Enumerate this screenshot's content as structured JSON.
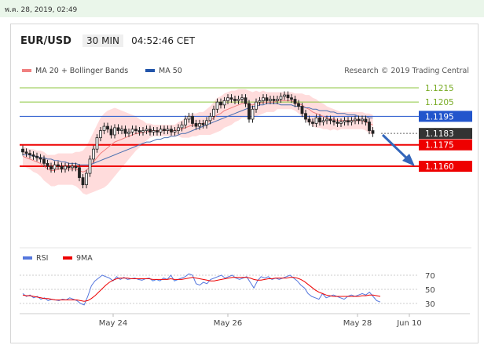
{
  "datetime": "พ.ค. 28, 2019, 02:49",
  "symbol": "EUR/USD",
  "timeframe": "30 MIN",
  "clock": "04:52:46 CET",
  "legend": {
    "ma20": "MA 20 + Bollinger Bands",
    "ma50": "MA 50",
    "credit": "Research © 2019 Trading Central",
    "rsi": "RSI",
    "ma9": "9MA"
  },
  "colors": {
    "green": "#8cc63f",
    "blue": "#2255cc",
    "red": "#ee0000",
    "dark": "#333333",
    "band": "#ffd0d0",
    "ma20": "#f08080",
    "ma50": "#4a6fb0",
    "rsi": "#5577dd",
    "arrow": "#3366bb"
  },
  "chart_data": [
    {
      "type": "candlestick",
      "title": "EUR/USD",
      "ylim": [
        1.1136,
        1.1228
      ],
      "levels": [
        {
          "value": 1.1215,
          "label": "1.1215",
          "kind": "resistance"
        },
        {
          "value": 1.1205,
          "label": "1.1205",
          "kind": "resistance"
        },
        {
          "value": 1.1195,
          "label": "1.1195",
          "kind": "pivot"
        },
        {
          "value": 1.1183,
          "label": "1.1183",
          "kind": "last"
        },
        {
          "value": 1.1175,
          "label": "1.1175",
          "kind": "support"
        },
        {
          "value": 1.116,
          "label": "1.1160",
          "kind": "support"
        }
      ],
      "x_ticks": [
        "May 24",
        "May 26",
        "May 28",
        "Jun 10"
      ],
      "close": [
        1.117,
        1.1169,
        1.1168,
        1.1167,
        1.1166,
        1.1165,
        1.1162,
        1.116,
        1.1158,
        1.1161,
        1.116,
        1.1158,
        1.116,
        1.1159,
        1.116,
        1.1159,
        1.1152,
        1.1147,
        1.1155,
        1.1165,
        1.1172,
        1.118,
        1.1185,
        1.1188,
        1.1186,
        1.1182,
        1.1187,
        1.1185,
        1.1186,
        1.1183,
        1.1184,
        1.1186,
        1.1185,
        1.1184,
        1.1185,
        1.1186,
        1.1184,
        1.1185,
        1.1184,
        1.1186,
        1.1185,
        1.1186,
        1.1184,
        1.1185,
        1.1187,
        1.1189,
        1.1193,
        1.1195,
        1.119,
        1.1188,
        1.119,
        1.1189,
        1.1192,
        1.1195,
        1.12,
        1.1205,
        1.1203,
        1.1206,
        1.1208,
        1.1207,
        1.1206,
        1.1207,
        1.1208,
        1.1204,
        1.1193,
        1.12,
        1.1205,
        1.1206,
        1.1208,
        1.1206,
        1.1207,
        1.1206,
        1.1207,
        1.1209,
        1.121,
        1.1208,
        1.1207,
        1.1204,
        1.1202,
        1.1197,
        1.1193,
        1.1191,
        1.119,
        1.1194,
        1.1191,
        1.1192,
        1.1193,
        1.1192,
        1.1191,
        1.119,
        1.1191,
        1.1192,
        1.1191,
        1.1192,
        1.1193,
        1.1192,
        1.1193,
        1.1191,
        1.1185,
        1.1183
      ],
      "ma20": [
        1.1167,
        1.1166,
        1.1165,
        1.1164,
        1.1163,
        1.1162,
        1.116,
        1.1158,
        1.1157,
        1.1157,
        1.1158,
        1.1158,
        1.1158,
        1.1158,
        1.1158,
        1.1158,
        1.1157,
        1.1156,
        1.1157,
        1.116,
        1.1163,
        1.1166,
        1.1169,
        1.1171,
        1.1173,
        1.1175,
        1.1177,
        1.1178,
        1.1179,
        1.118,
        1.1181,
        1.1182,
        1.1183,
        1.1183,
        1.1184,
        1.1184,
        1.1185,
        1.1185,
        1.1185,
        1.1185,
        1.1185,
        1.1185,
        1.1185,
        1.1185,
        1.1186,
        1.1186,
        1.1187,
        1.1188,
        1.1189,
        1.1189,
        1.119,
        1.119,
        1.1191,
        1.1192,
        1.1194,
        1.1196,
        1.1197,
        1.1199,
        1.12,
        1.1201,
        1.1202,
        1.1203,
        1.1204,
        1.1204,
        1.1203,
        1.1203,
        1.1204,
        1.1204,
        1.1205,
        1.1205,
        1.1205,
        1.1205,
        1.1206,
        1.1206,
        1.1206,
        1.1206,
        1.1206,
        1.1205,
        1.1204,
        1.1203,
        1.1201,
        1.12,
        1.1198,
        1.1197,
        1.1196,
        1.1195,
        1.1194,
        1.1193,
        1.1193,
        1.1192,
        1.1192,
        1.1192,
        1.1192,
        1.1192,
        1.1192,
        1.1192,
        1.1192,
        1.1191,
        1.119,
        1.1189
      ],
      "bb_width": [
        0.0007,
        0.0007,
        0.0007,
        0.0008,
        0.0008,
        0.0009,
        0.001,
        0.001,
        0.0011,
        0.0011,
        0.0011,
        0.0011,
        0.0011,
        0.0011,
        0.0011,
        0.0012,
        0.0013,
        0.0015,
        0.0017,
        0.0019,
        0.0021,
        0.0023,
        0.0025,
        0.0026,
        0.0026,
        0.0025,
        0.0024,
        0.0022,
        0.002,
        0.0018,
        0.0016,
        0.0014,
        0.0012,
        0.001,
        0.0008,
        0.0006,
        0.0005,
        0.0004,
        0.0004,
        0.0004,
        0.0004,
        0.0004,
        0.0004,
        0.0004,
        0.0005,
        0.0006,
        0.0007,
        0.0008,
        0.0008,
        0.0008,
        0.0008,
        0.0008,
        0.0009,
        0.001,
        0.0011,
        0.0012,
        0.0012,
        0.0012,
        0.0012,
        0.0012,
        0.0011,
        0.0011,
        0.001,
        0.001,
        0.001,
        0.0009,
        0.0009,
        0.0008,
        0.0008,
        0.0007,
        0.0007,
        0.0007,
        0.0006,
        0.0006,
        0.0006,
        0.0006,
        0.0006,
        0.0006,
        0.0007,
        0.0008,
        0.0009,
        0.001,
        0.001,
        0.001,
        0.0009,
        0.0009,
        0.0008,
        0.0008,
        0.0007,
        0.0007,
        0.0006,
        0.0006,
        0.0006,
        0.0006,
        0.0006,
        0.0006,
        0.0006,
        0.0006,
        0.0007,
        0.0007
      ],
      "ma50": [
        1.1168,
        1.1168,
        1.1168,
        1.1167,
        1.1167,
        1.1166,
        1.1166,
        1.1165,
        1.1165,
        1.1164,
        1.1164,
        1.1163,
        1.1163,
        1.1162,
        1.1162,
        1.1162,
        1.1161,
        1.1161,
        1.1161,
        1.1161,
        1.1162,
        1.1163,
        1.1164,
        1.1165,
        1.1166,
        1.1167,
        1.1168,
        1.1169,
        1.117,
        1.1171,
        1.1172,
        1.1173,
        1.1174,
        1.1175,
        1.1176,
        1.1177,
        1.1177,
        1.1178,
        1.1179,
        1.1179,
        1.118,
        1.118,
        1.1181,
        1.1181,
        1.1182,
        1.1183,
        1.1183,
        1.1184,
        1.1185,
        1.1186,
        1.1187,
        1.1188,
        1.1189,
        1.119,
        1.1191,
        1.1192,
        1.1193,
        1.1194,
        1.1195,
        1.1196,
        1.1197,
        1.1198,
        1.1199,
        1.12,
        1.1201,
        1.1202,
        1.1202,
        1.1203,
        1.1203,
        1.1204,
        1.1204,
        1.1204,
        1.1204,
        1.1203,
        1.1203,
        1.1203,
        1.1203,
        1.1202,
        1.1202,
        1.1202,
        1.1201,
        1.1201,
        1.12,
        1.12,
        1.1199,
        1.1199,
        1.1199,
        1.1198,
        1.1198,
        1.1197,
        1.1197,
        1.1197,
        1.1196,
        1.1196,
        1.1196,
        1.1195,
        1.1195,
        1.1195,
        1.1194,
        1.1194
      ]
    },
    {
      "type": "line",
      "title": "RSI",
      "ylim": [
        22,
        78
      ],
      "y_ticks": [
        70,
        50,
        30
      ],
      "rsi": [
        44,
        40,
        42,
        38,
        40,
        36,
        38,
        34,
        36,
        35,
        34,
        36,
        35,
        38,
        36,
        34,
        30,
        28,
        40,
        55,
        62,
        66,
        70,
        68,
        66,
        62,
        68,
        64,
        67,
        64,
        65,
        66,
        64,
        63,
        65,
        66,
        62,
        64,
        62,
        66,
        64,
        70,
        62,
        64,
        66,
        68,
        72,
        70,
        58,
        56,
        60,
        58,
        64,
        66,
        68,
        70,
        66,
        68,
        70,
        66,
        64,
        66,
        68,
        60,
        52,
        62,
        68,
        66,
        68,
        64,
        66,
        64,
        66,
        68,
        70,
        66,
        62,
        56,
        52,
        44,
        40,
        38,
        36,
        44,
        38,
        40,
        42,
        40,
        38,
        36,
        40,
        42,
        40,
        42,
        44,
        42,
        46,
        40,
        34,
        32
      ],
      "ma9": [
        42,
        41,
        41,
        40,
        39,
        38,
        37,
        37,
        36,
        35,
        35,
        35,
        35,
        35,
        35,
        35,
        34,
        33,
        34,
        37,
        41,
        46,
        51,
        56,
        60,
        63,
        65,
        66,
        66,
        66,
        65,
        65,
        65,
        65,
        65,
        65,
        64,
        64,
        64,
        64,
        64,
        65,
        64,
        64,
        64,
        65,
        66,
        67,
        66,
        65,
        64,
        63,
        62,
        62,
        63,
        64,
        65,
        66,
        67,
        67,
        67,
        67,
        67,
        66,
        64,
        63,
        63,
        64,
        65,
        65,
        66,
        66,
        66,
        66,
        67,
        67,
        66,
        64,
        61,
        57,
        53,
        49,
        46,
        44,
        42,
        41,
        40,
        40,
        40,
        40,
        40,
        40,
        40,
        40,
        41,
        41,
        42,
        42,
        41,
        40
      ]
    }
  ]
}
